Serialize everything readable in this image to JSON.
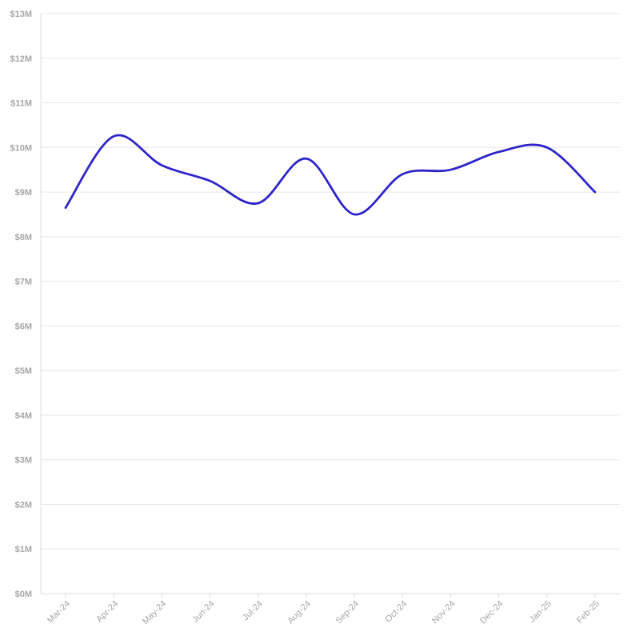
{
  "chart_data": {
    "type": "line",
    "title": "",
    "xlabel": "",
    "ylabel": "",
    "categories": [
      "Mar-24",
      "Apr-24",
      "May-24",
      "Jun-24",
      "Jul-24",
      "Aug-24",
      "Sep-24",
      "Oct-24",
      "Nov-24",
      "Dec-24",
      "Jan-25",
      "Feb-25"
    ],
    "series": [
      {
        "values": [
          8.65,
          10.25,
          9.6,
          9.25,
          8.75,
          9.75,
          8.5,
          9.4,
          9.5,
          9.9,
          10.0,
          9.0
        ]
      }
    ],
    "ylim": [
      0,
      13
    ],
    "y_ticks": [
      0,
      1,
      2,
      3,
      4,
      5,
      6,
      7,
      8,
      9,
      10,
      11,
      12,
      13
    ],
    "y_tick_labels": [
      "$0M",
      "$1M",
      "$2M",
      "$3M",
      "$4M",
      "$5M",
      "$6M",
      "$7M",
      "$8M",
      "$9M",
      "$10M",
      "$11M",
      "$12M",
      "$13M"
    ],
    "grid": true,
    "colors": {
      "series": "#2f24c8",
      "grid": "#e7e7e7",
      "tick_text": "#a7a7a7"
    }
  }
}
